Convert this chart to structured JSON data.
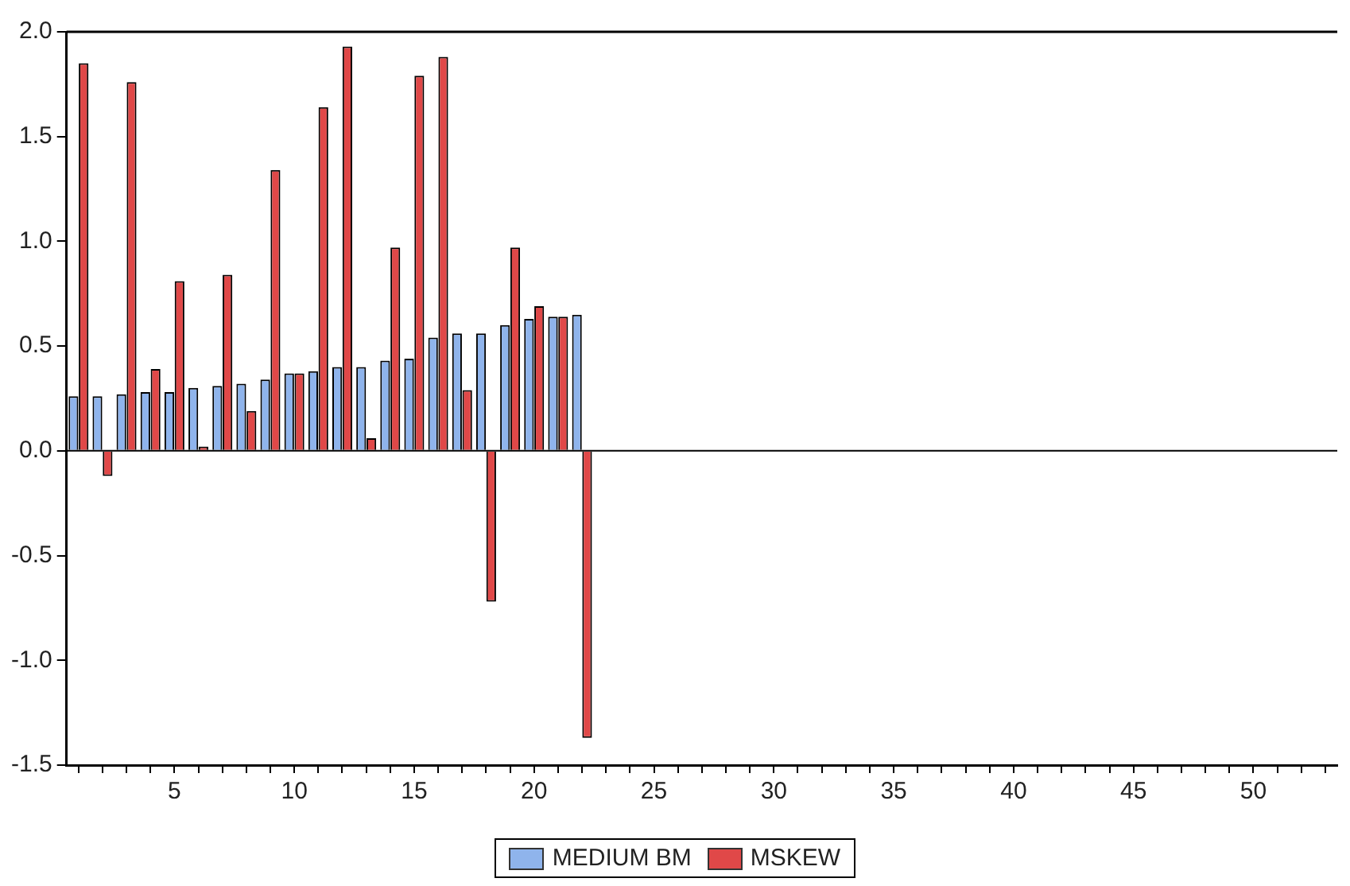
{
  "chart_data": {
    "type": "bar",
    "categories": [
      null,
      null,
      null,
      null,
      "5",
      null,
      null,
      null,
      null,
      "10",
      null,
      null,
      null,
      null,
      "15",
      null,
      null,
      null,
      null,
      "20",
      null,
      null,
      null,
      null,
      "25",
      null,
      null,
      null,
      null,
      "30",
      null,
      null,
      null,
      null,
      "35",
      null,
      null,
      null,
      null,
      "40",
      null,
      null,
      null,
      null,
      "45",
      null,
      null,
      null,
      null,
      "50",
      null,
      null,
      null
    ],
    "series": [
      {
        "name": "MEDIUM BM",
        "color": "#8fb4ec",
        "values": [
          0.26,
          0.26,
          0.27,
          0.28,
          0.28,
          0.3,
          0.31,
          0.32,
          0.34,
          0.37,
          0.38,
          0.4,
          0.4,
          0.43,
          0.44,
          0.54,
          0.56,
          0.56,
          0.6,
          0.63,
          0.64,
          0.65,
          null,
          null,
          null,
          null,
          null,
          null,
          null,
          null,
          null,
          null,
          null,
          null,
          null,
          null,
          null,
          null,
          null,
          null,
          null,
          null,
          null,
          null,
          null,
          null,
          null,
          null,
          null,
          null,
          null,
          null,
          null
        ]
      },
      {
        "name": "MSKEW",
        "color": "#e04848",
        "values": [
          1.85,
          -0.12,
          1.76,
          0.39,
          0.81,
          0.02,
          0.84,
          0.19,
          1.34,
          0.37,
          1.64,
          1.93,
          0.06,
          0.97,
          1.79,
          1.88,
          0.29,
          -0.72,
          0.97,
          0.69,
          0.64,
          -1.37,
          null,
          null,
          null,
          null,
          null,
          null,
          null,
          null,
          null,
          null,
          null,
          null,
          null,
          null,
          null,
          null,
          null,
          null,
          null,
          null,
          null,
          null,
          null,
          null,
          null,
          null,
          null,
          null,
          null,
          null,
          null
        ]
      }
    ],
    "ylim": [
      -1.5,
      2.0
    ],
    "yticks": [
      {
        "value": -1.5,
        "label": "-1.5"
      },
      {
        "value": -1.0,
        "label": "-1.0"
      },
      {
        "value": -0.5,
        "label": "-0.5"
      },
      {
        "value": 0,
        "label": "0.0"
      },
      {
        "value": 0.5,
        "label": "0.5"
      },
      {
        "value": 1.0,
        "label": "1.0"
      },
      {
        "value": 1.5,
        "label": "1.5"
      },
      {
        "value": 2.0,
        "label": "2.0"
      }
    ],
    "ref_lines": [
      {
        "axis": "y",
        "value": 0,
        "color": "#000000"
      }
    ],
    "grid": false,
    "legend": "bottom"
  }
}
